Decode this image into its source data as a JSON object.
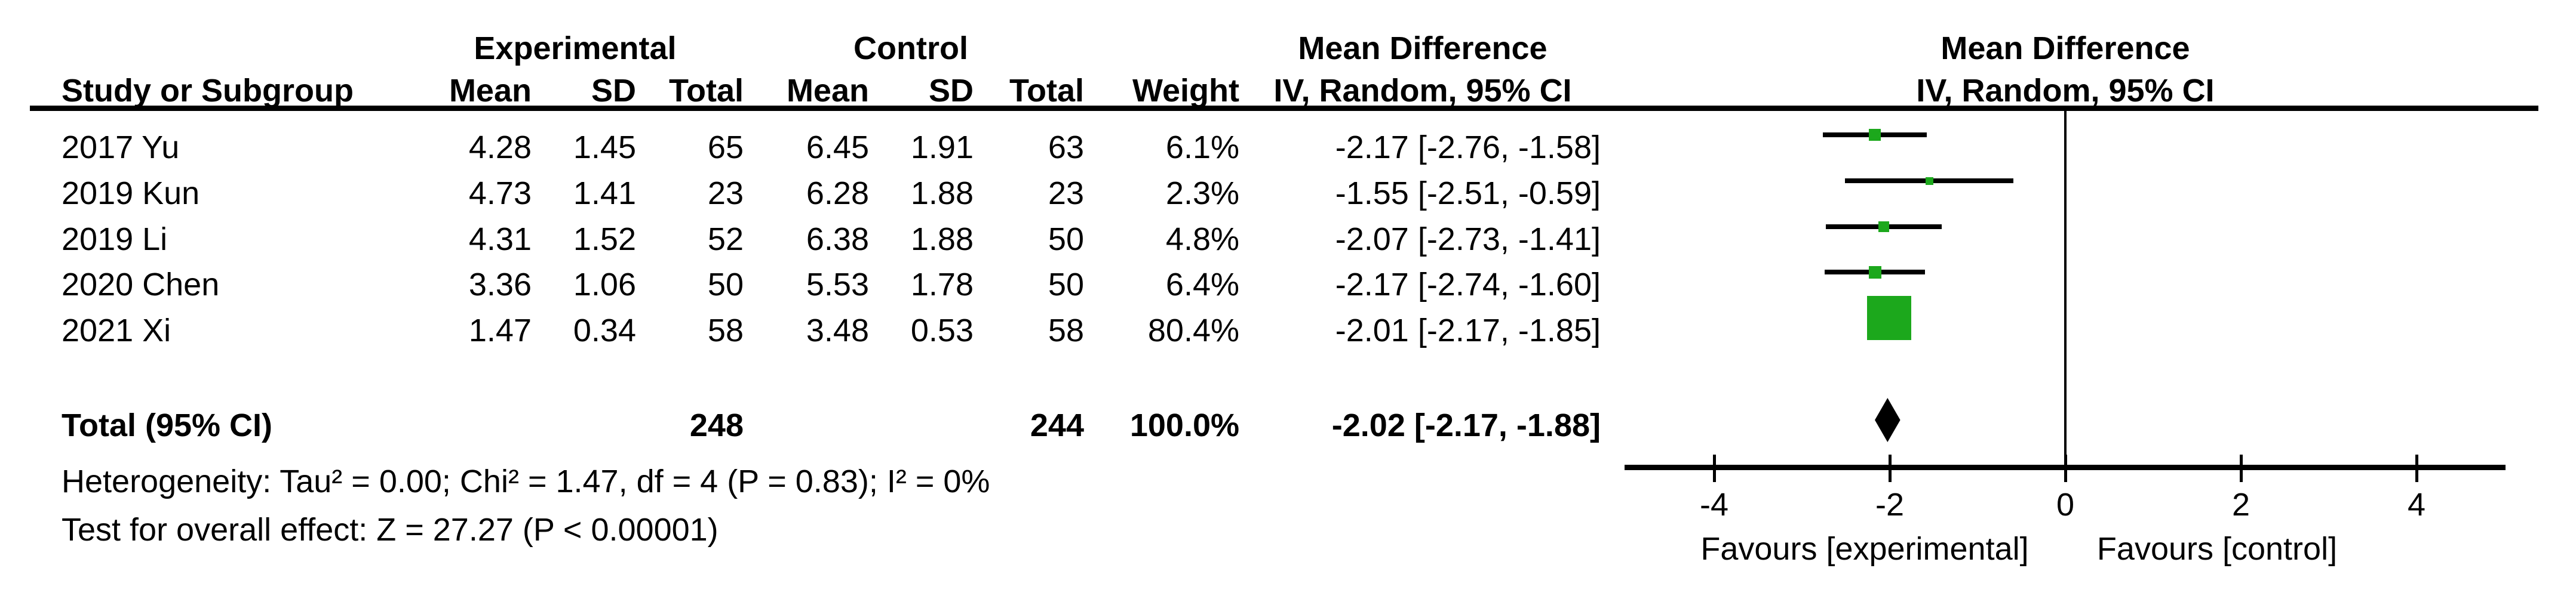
{
  "table": {
    "group_headers": {
      "experimental": "Experimental",
      "control": "Control",
      "mean_difference_left": "Mean Difference",
      "mean_difference_right": "Mean Difference"
    },
    "column_headers": {
      "study": "Study or Subgroup",
      "mean": "Mean",
      "sd": "SD",
      "total": "Total",
      "weight": "Weight",
      "iv_left": "IV, Random, 95% CI",
      "iv_right": "IV, Random, 95% CI"
    },
    "rows": [
      {
        "study": "2017 Yu",
        "mean_e": "4.28",
        "sd_e": "1.45",
        "total_e": "65",
        "mean_c": "6.45",
        "sd_c": "1.91",
        "total_c": "63",
        "weight": "6.1%",
        "md": "-2.17 [-2.76, -1.58]"
      },
      {
        "study": "2019 Kun",
        "mean_e": "4.73",
        "sd_e": "1.41",
        "total_e": "23",
        "mean_c": "6.28",
        "sd_c": "1.88",
        "total_c": "23",
        "weight": "2.3%",
        "md": "-1.55 [-2.51, -0.59]"
      },
      {
        "study": "2019 Li",
        "mean_e": "4.31",
        "sd_e": "1.52",
        "total_e": "52",
        "mean_c": "6.38",
        "sd_c": "1.88",
        "total_c": "50",
        "weight": "4.8%",
        "md": "-2.07 [-2.73, -1.41]"
      },
      {
        "study": "2020 Chen",
        "mean_e": "3.36",
        "sd_e": "1.06",
        "total_e": "50",
        "mean_c": "5.53",
        "sd_c": "1.78",
        "total_c": "50",
        "weight": "6.4%",
        "md": "-2.17 [-2.74, -1.60]"
      },
      {
        "study": "2021 Xi",
        "mean_e": "1.47",
        "sd_e": "0.34",
        "total_e": "58",
        "mean_c": "3.48",
        "sd_c": "0.53",
        "total_c": "58",
        "weight": "80.4%",
        "md": "-2.01 [-2.17, -1.85]"
      }
    ],
    "total_row": {
      "label": "Total (95% CI)",
      "total_e": "248",
      "total_c": "244",
      "weight": "100.0%",
      "md": "-2.02 [-2.17, -1.88]"
    },
    "footnotes": {
      "heterogeneity": "Heterogeneity: Tau² = 0.00; Chi² = 1.47, df = 4 (P = 0.83); I² = 0%",
      "overall_effect": "Test for overall effect: Z = 27.27 (P < 0.00001)"
    }
  },
  "chart_data": {
    "type": "forest",
    "effect_measure": "Mean Difference",
    "model": "IV, Random, 95% CI",
    "xlim": [
      -5,
      5
    ],
    "x_ticks": [
      -4,
      -2,
      0,
      2,
      4
    ],
    "x_axis_labels": {
      "left": "Favours [experimental]",
      "right": "Favours [control]"
    },
    "zero_line": 0,
    "studies": [
      {
        "name": "2017 Yu",
        "est": -2.17,
        "lo": -2.76,
        "hi": -1.58,
        "weight_pct": 6.1
      },
      {
        "name": "2019 Kun",
        "est": -1.55,
        "lo": -2.51,
        "hi": -0.59,
        "weight_pct": 2.3
      },
      {
        "name": "2019 Li",
        "est": -2.07,
        "lo": -2.73,
        "hi": -1.41,
        "weight_pct": 4.8
      },
      {
        "name": "2020 Chen",
        "est": -2.17,
        "lo": -2.74,
        "hi": -1.6,
        "weight_pct": 6.4
      },
      {
        "name": "2021 Xi",
        "est": -2.01,
        "lo": -2.17,
        "hi": -1.85,
        "weight_pct": 80.4
      }
    ],
    "total": {
      "est": -2.02,
      "lo": -2.17,
      "hi": -1.88,
      "weight_pct": 100.0
    }
  },
  "colors": {
    "marker_green": "#1CA81C",
    "line_black": "#000000",
    "background": "#ffffff"
  }
}
